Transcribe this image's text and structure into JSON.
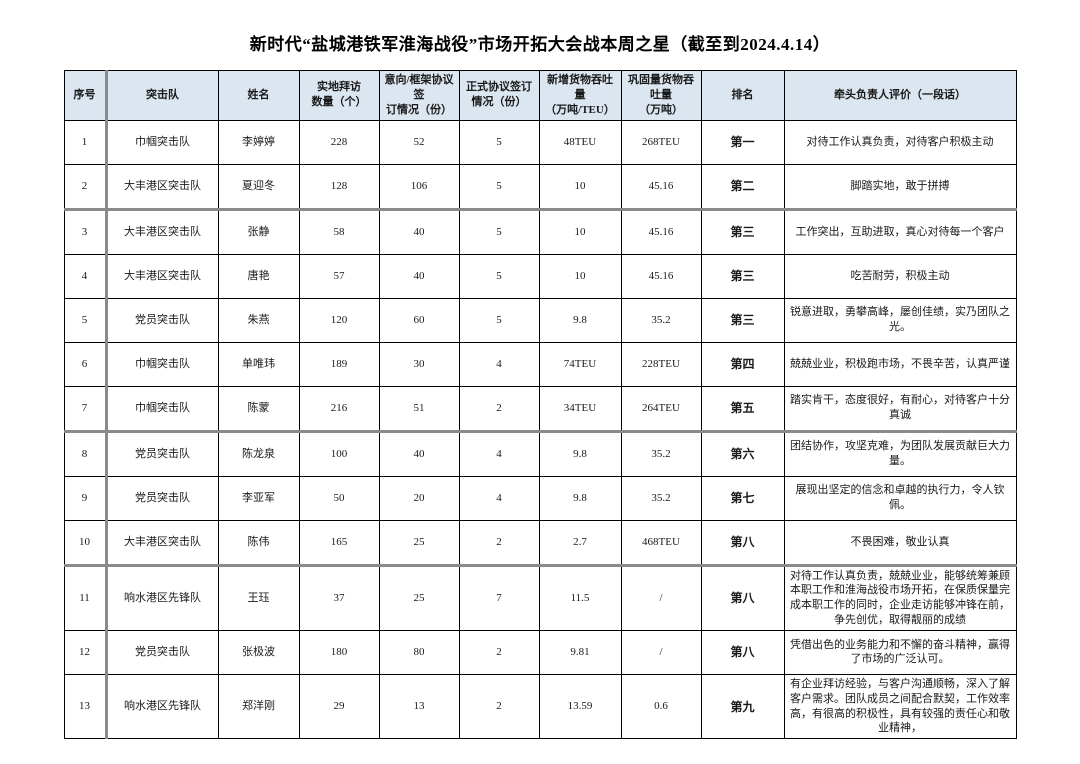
{
  "title": "新时代“盐城港铁军淮海战役”市场开拓大会战本周之星（截至到2024.4.14）",
  "table": {
    "header_bg": "#dce6f1",
    "border_color": "#000000",
    "separator_color": "#8a8a8a",
    "columns": [
      {
        "key": "no",
        "label": "序号"
      },
      {
        "key": "team",
        "label": "突击队"
      },
      {
        "key": "name",
        "label": "姓名"
      },
      {
        "key": "visits",
        "label": "实地拜访\n数量（个）"
      },
      {
        "key": "intent",
        "label": "意向/框架协议签\n订情况（份）"
      },
      {
        "key": "formal",
        "label": "正式协议签订\n情况（份）"
      },
      {
        "key": "new_tp",
        "label": "新增货物吞吐量\n（万吨/TEU）"
      },
      {
        "key": "cons_tp",
        "label": "巩固量货物吞吐量\n（万吨）"
      },
      {
        "key": "rank",
        "label": "排名"
      },
      {
        "key": "comment",
        "label": "牵头负责人评价（一段话）"
      }
    ],
    "rows": [
      {
        "no": "1",
        "team": "巾帼突击队",
        "name": "李婷婷",
        "visits": "228",
        "intent": "52",
        "formal": "5",
        "new_tp": "48TEU",
        "cons_tp": "268TEU",
        "rank": "第一",
        "comment": "对待工作认真负责，对待客户积极主动"
      },
      {
        "no": "2",
        "team": "大丰港区突击队",
        "name": "夏迎冬",
        "visits": "128",
        "intent": "106",
        "formal": "5",
        "new_tp": "10",
        "cons_tp": "45.16",
        "rank": "第二",
        "comment": "脚踏实地，敢于拼搏"
      },
      {
        "no": "3",
        "team": "大丰港区突击队",
        "name": "张静",
        "visits": "58",
        "intent": "40",
        "formal": "5",
        "new_tp": "10",
        "cons_tp": "45.16",
        "rank": "第三",
        "comment": "工作突出，互助进取，真心对待每一个客户"
      },
      {
        "no": "4",
        "team": "大丰港区突击队",
        "name": "唐艳",
        "visits": "57",
        "intent": "40",
        "formal": "5",
        "new_tp": "10",
        "cons_tp": "45.16",
        "rank": "第三",
        "comment": "吃苦耐劳，积极主动"
      },
      {
        "no": "5",
        "team": "党员突击队",
        "name": "朱燕",
        "visits": "120",
        "intent": "60",
        "formal": "5",
        "new_tp": "9.8",
        "cons_tp": "35.2",
        "rank": "第三",
        "comment": "锐意进取，勇攀高峰，屡创佳绩，实乃团队之光。"
      },
      {
        "no": "6",
        "team": "巾帼突击队",
        "name": "单唯玮",
        "visits": "189",
        "intent": "30",
        "formal": "4",
        "new_tp": "74TEU",
        "cons_tp": "228TEU",
        "rank": "第四",
        "comment": "兢兢业业，积极跑市场，不畏辛苦，认真严谨"
      },
      {
        "no": "7",
        "team": "巾帼突击队",
        "name": "陈蒙",
        "visits": "216",
        "intent": "51",
        "formal": "2",
        "new_tp": "34TEU",
        "cons_tp": "264TEU",
        "rank": "第五",
        "comment": "踏实肯干，态度很好，有耐心，对待客户十分真诚"
      },
      {
        "no": "8",
        "team": "党员突击队",
        "name": "陈龙泉",
        "visits": "100",
        "intent": "40",
        "formal": "4",
        "new_tp": "9.8",
        "cons_tp": "35.2",
        "rank": "第六",
        "comment": "团结协作，攻坚克难，为团队发展贡献巨大力量。"
      },
      {
        "no": "9",
        "team": "党员突击队",
        "name": "李亚军",
        "visits": "50",
        "intent": "20",
        "formal": "4",
        "new_tp": "9.8",
        "cons_tp": "35.2",
        "rank": "第七",
        "comment": "展现出坚定的信念和卓越的执行力，令人钦佩。"
      },
      {
        "no": "10",
        "team": "大丰港区突击队",
        "name": "陈伟",
        "visits": "165",
        "intent": "25",
        "formal": "2",
        "new_tp": "2.7",
        "cons_tp": "468TEU",
        "rank": "第八",
        "comment": "不畏困难，敬业认真"
      },
      {
        "no": "11",
        "team": "响水港区先锋队",
        "name": "王珏",
        "visits": "37",
        "intent": "25",
        "formal": "7",
        "new_tp": "11.5",
        "cons_tp": "/",
        "rank": "第八",
        "comment": "对待工作认真负责，兢兢业业，能够统筹兼顾本职工作和淮海战役市场开拓，在保质保量完成本职工作的同时，企业走访能够冲锋在前，争先创优，取得靓丽的成绩"
      },
      {
        "no": "12",
        "team": "党员突击队",
        "name": "张极波",
        "visits": "180",
        "intent": "80",
        "formal": "2",
        "new_tp": "9.81",
        "cons_tp": "/",
        "rank": "第八",
        "comment": "凭借出色的业务能力和不懈的奋斗精神，赢得了市场的广泛认可。"
      },
      {
        "no": "13",
        "team": "响水港区先锋队",
        "name": "郑洋刚",
        "visits": "29",
        "intent": "13",
        "formal": "2",
        "new_tp": "13.59",
        "cons_tp": "0.6",
        "rank": "第九",
        "comment": "有企业拜访经验，与客户沟通顺畅，深入了解客户需求。团队成员之间配合默契，工作效率高，有很高的积极性，具有较强的责任心和敬业精神，"
      }
    ],
    "thick_top_row_indexes": [
      2,
      7,
      10
    ]
  }
}
